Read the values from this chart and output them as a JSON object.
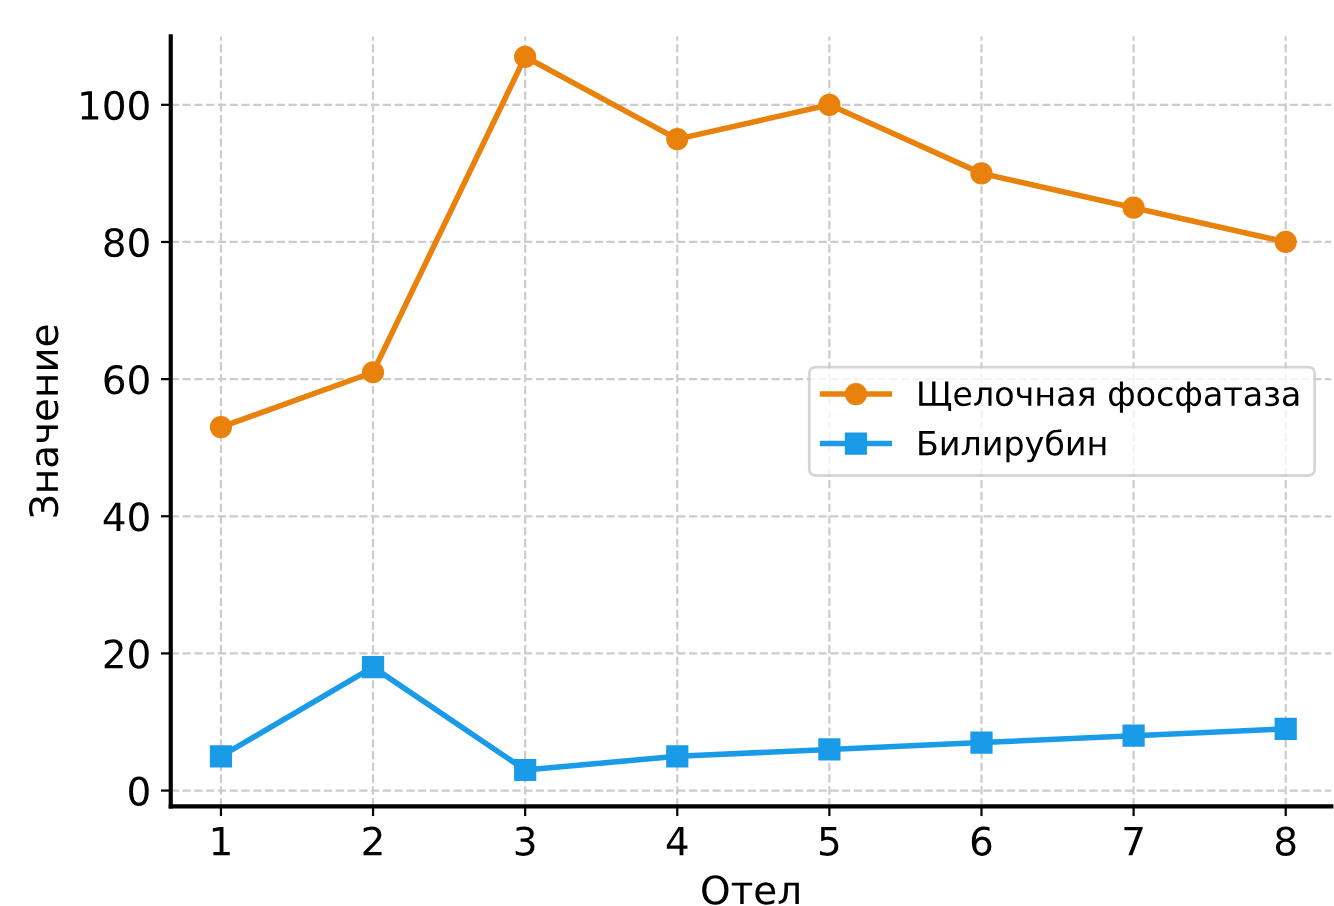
{
  "chart_data": {
    "type": "line",
    "xlabel": "Отел",
    "ylabel": "Значение",
    "x": [
      1,
      2,
      3,
      4,
      5,
      6,
      7,
      8
    ],
    "series": [
      {
        "name": "Щелочная фосфатаза",
        "color": "#e8820c",
        "marker": "circle",
        "values": [
          53,
          61,
          107,
          95,
          100,
          90,
          85,
          80
        ]
      },
      {
        "name": "Билирубин",
        "color": "#1a9be8",
        "marker": "square",
        "values": [
          5,
          18,
          3,
          5,
          6,
          7,
          8,
          9
        ]
      }
    ],
    "xlim": [
      0.67,
      8.3
    ],
    "ylim": [
      -2.3,
      110
    ],
    "xticks": [
      1,
      2,
      3,
      4,
      5,
      6,
      7,
      8
    ],
    "yticks": [
      0,
      20,
      40,
      60,
      80,
      100
    ],
    "grid": true,
    "legend": "center right",
    "line_style": "solid"
  }
}
